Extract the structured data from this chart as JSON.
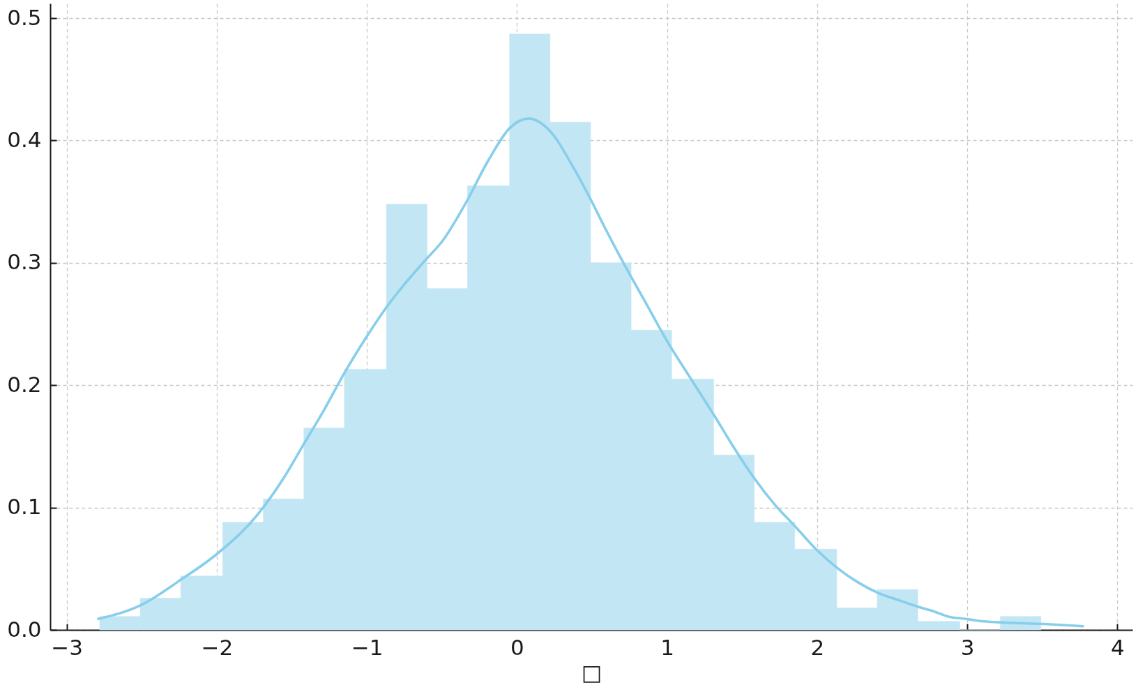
{
  "chart_data": {
    "type": "histogram",
    "xlabel": "□",
    "series": [
      {
        "color": "#c3e6f4",
        "bins": [
          -2.78,
          -2.51,
          -2.24,
          -1.96,
          -1.69,
          -1.42,
          -1.15,
          -0.87,
          -0.6,
          -0.33,
          -0.05,
          0.22,
          0.49,
          0.76,
          1.03,
          1.31,
          1.58,
          1.85,
          2.13,
          2.4,
          2.67,
          2.95,
          3.22,
          3.49
        ],
        "values": [
          0.011,
          0.026,
          0.044,
          0.088,
          0.107,
          0.165,
          0.213,
          0.348,
          0.279,
          0.363,
          0.487,
          0.415,
          0.3,
          0.245,
          0.205,
          0.143,
          0.088,
          0.066,
          0.018,
          0.033,
          0.007,
          0,
          0.011
        ]
      },
      {
        "type": "line",
        "color": "#87ceeb",
        "x": [
          -2.79,
          -2.51,
          -2.24,
          -2.0,
          -1.73,
          -1.55,
          -1.42,
          -1.28,
          -1.15,
          -1.0,
          -0.88,
          -0.74,
          -0.62,
          -0.49,
          -0.35,
          -0.19,
          -0.05,
          0.08,
          0.21,
          0.38,
          0.49,
          0.58,
          0.7,
          0.85,
          1.0,
          1.17,
          1.31,
          1.44,
          1.58,
          1.72,
          1.85,
          2.0,
          2.13,
          2.27,
          2.41,
          2.55,
          2.67,
          2.78,
          2.87,
          2.99,
          3.11,
          3.25,
          3.48,
          3.77
        ],
        "values": [
          0.009,
          0.02,
          0.041,
          0.062,
          0.094,
          0.125,
          0.152,
          0.181,
          0.21,
          0.24,
          0.262,
          0.284,
          0.301,
          0.319,
          0.347,
          0.384,
          0.41,
          0.418,
          0.409,
          0.377,
          0.352,
          0.33,
          0.302,
          0.269,
          0.236,
          0.203,
          0.176,
          0.15,
          0.124,
          0.102,
          0.085,
          0.065,
          0.051,
          0.039,
          0.03,
          0.024,
          0.019,
          0.015,
          0.011,
          0.009,
          0.007,
          0.006,
          0.005,
          0.003
        ]
      }
    ],
    "xlim": [
      -3.11,
      4.1
    ],
    "ylim": [
      0,
      0.512
    ],
    "xticks": [
      {
        "value": -3,
        "label": "−3"
      },
      {
        "value": -2,
        "label": "−2"
      },
      {
        "value": -1,
        "label": "−1"
      },
      0,
      1,
      2,
      3,
      4
    ],
    "yticks": [
      {
        "value": 0,
        "label": "0.0"
      },
      0.1,
      0.2,
      0.3,
      0.4,
      0.5
    ],
    "grid": true
  }
}
